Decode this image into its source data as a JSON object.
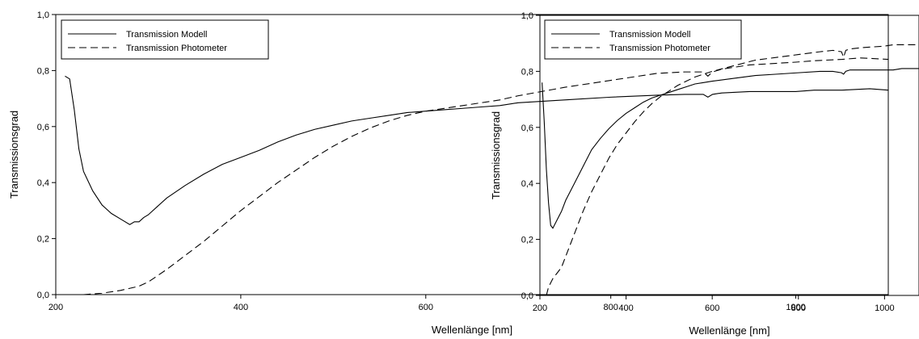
{
  "chart_data": [
    {
      "type": "line",
      "title": "",
      "xlabel": "Wellenlänge [nm]",
      "ylabel": "Transmissionsgrad",
      "xlim": [
        200,
        1100
      ],
      "ylim": [
        0,
        1.0
      ],
      "xticks": [
        200,
        400,
        600,
        800,
        1000
      ],
      "yticks": [
        0.0,
        0.2,
        0.4,
        0.6,
        0.8,
        1.0
      ],
      "xtick_labels": [
        "200",
        "400",
        "600",
        "800",
        "1000"
      ],
      "ytick_labels": [
        "0,0",
        "0,2",
        "0,4",
        "0,6",
        "0,8",
        "1,0"
      ],
      "grid": false,
      "legend": "top-left",
      "series": [
        {
          "name": "Transmission Modell",
          "style": "solid",
          "x": [
            210,
            215,
            220,
            225,
            230,
            240,
            250,
            260,
            270,
            280,
            285,
            290,
            295,
            300,
            310,
            320,
            340,
            360,
            380,
            400,
            420,
            440,
            460,
            480,
            500,
            520,
            540,
            560,
            580,
            600,
            620,
            640,
            660,
            680,
            700,
            750,
            800,
            850,
            880,
            900,
            905,
            910,
            920,
            950,
            1000,
            1020,
            1050,
            1080,
            1100
          ],
          "y": [
            0.78,
            0.77,
            0.66,
            0.52,
            0.44,
            0.37,
            0.32,
            0.29,
            0.27,
            0.25,
            0.26,
            0.26,
            0.275,
            0.285,
            0.315,
            0.345,
            0.39,
            0.43,
            0.465,
            0.49,
            0.515,
            0.545,
            0.57,
            0.59,
            0.605,
            0.62,
            0.63,
            0.64,
            0.65,
            0.655,
            0.66,
            0.665,
            0.67,
            0.675,
            0.685,
            0.695,
            0.705,
            0.712,
            0.715,
            0.715,
            0.705,
            0.715,
            0.72,
            0.725,
            0.725,
            0.73,
            0.73,
            0.735,
            0.73
          ]
        },
        {
          "name": "Transmission Photometer",
          "style": "dashed",
          "x": [
            230,
            250,
            270,
            290,
            300,
            320,
            340,
            360,
            380,
            400,
            420,
            440,
            460,
            480,
            500,
            520,
            540,
            560,
            580,
            600,
            620,
            640,
            660,
            680,
            700,
            750,
            800,
            850,
            880,
            900,
            905,
            910,
            920,
            950,
            1000,
            1020,
            1050,
            1070,
            1100
          ],
          "y": [
            0.0,
            0.005,
            0.015,
            0.03,
            0.045,
            0.09,
            0.14,
            0.19,
            0.245,
            0.3,
            0.35,
            0.4,
            0.445,
            0.49,
            0.53,
            0.565,
            0.595,
            0.62,
            0.64,
            0.655,
            0.665,
            0.675,
            0.685,
            0.695,
            0.71,
            0.74,
            0.765,
            0.79,
            0.795,
            0.795,
            0.78,
            0.795,
            0.805,
            0.82,
            0.83,
            0.835,
            0.84,
            0.845,
            0.84
          ]
        }
      ]
    },
    {
      "type": "line",
      "title": "",
      "xlabel": "Wellenlänge [nm]",
      "ylabel": "Transmissionsgrad",
      "xlim": [
        200,
        1080
      ],
      "ylim": [
        0,
        1.0
      ],
      "xticks": [
        200,
        400,
        600,
        800,
        1000
      ],
      "yticks": [
        0.0,
        0.2,
        0.4,
        0.6,
        0.8,
        1.0
      ],
      "xtick_labels": [
        "200",
        "400",
        "600",
        "800",
        "1000"
      ],
      "ytick_labels": [
        "0,0",
        "0,2",
        "0,4",
        "0,6",
        "0,8",
        "1,0"
      ],
      "grid": false,
      "legend": "top-left",
      "series": [
        {
          "name": "Transmission Modell",
          "style": "solid",
          "x": [
            205,
            210,
            215,
            220,
            225,
            230,
            240,
            250,
            260,
            270,
            280,
            300,
            320,
            340,
            360,
            380,
            400,
            420,
            440,
            460,
            480,
            500,
            520,
            540,
            560,
            580,
            600,
            650,
            700,
            750,
            800,
            850,
            880,
            900,
            905,
            910,
            920,
            950,
            1000,
            1020,
            1040,
            1080
          ],
          "y": [
            0.76,
            0.62,
            0.45,
            0.33,
            0.25,
            0.24,
            0.27,
            0.3,
            0.34,
            0.37,
            0.4,
            0.46,
            0.52,
            0.56,
            0.595,
            0.625,
            0.65,
            0.67,
            0.69,
            0.705,
            0.715,
            0.725,
            0.735,
            0.745,
            0.755,
            0.76,
            0.765,
            0.775,
            0.785,
            0.79,
            0.795,
            0.8,
            0.8,
            0.795,
            0.79,
            0.8,
            0.805,
            0.805,
            0.805,
            0.805,
            0.81,
            0.81
          ]
        },
        {
          "name": "Transmission Photometer",
          "style": "dashed",
          "x": [
            215,
            220,
            230,
            240,
            250,
            260,
            270,
            280,
            300,
            320,
            340,
            360,
            380,
            400,
            420,
            440,
            460,
            480,
            500,
            520,
            540,
            560,
            580,
            600,
            650,
            700,
            750,
            800,
            850,
            880,
            900,
            905,
            910,
            920,
            950,
            1000,
            1020,
            1050,
            1080
          ],
          "y": [
            0.0,
            0.03,
            0.06,
            0.08,
            0.1,
            0.14,
            0.18,
            0.22,
            0.3,
            0.37,
            0.43,
            0.49,
            0.54,
            0.58,
            0.62,
            0.655,
            0.685,
            0.71,
            0.73,
            0.75,
            0.765,
            0.78,
            0.79,
            0.8,
            0.82,
            0.84,
            0.85,
            0.86,
            0.87,
            0.875,
            0.87,
            0.85,
            0.875,
            0.88,
            0.885,
            0.89,
            0.895,
            0.895,
            0.895
          ]
        }
      ]
    }
  ]
}
